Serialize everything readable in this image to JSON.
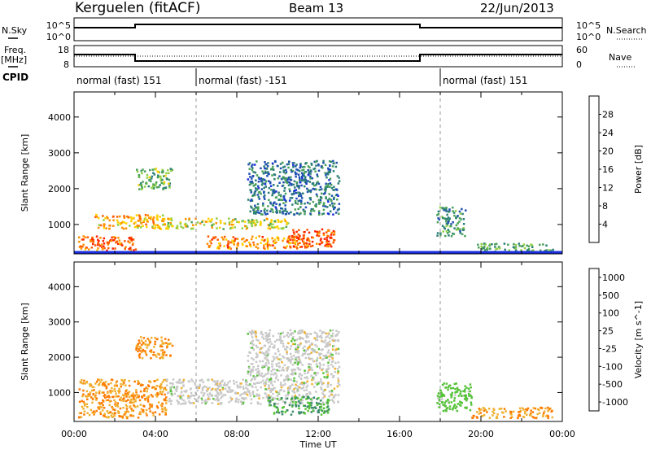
{
  "header": {
    "station": "Kerguelen (fitACF)",
    "beam": "Beam 13",
    "date": "22/Jun/2013"
  },
  "side_labels": {
    "nsky": "N.Sky",
    "nsearch": "N.Search",
    "freq_line1": "Freq.",
    "freq_line2": "[MHz]",
    "nave": "Nave",
    "cpid": "CPID"
  },
  "noise_panel": {
    "left_ticks": [
      "10^5",
      "10^0"
    ],
    "right_ticks": [
      "10^5",
      "10^0"
    ]
  },
  "freq_panel": {
    "left_ticks": [
      "18",
      "8"
    ],
    "right_ticks": [
      "60",
      "0"
    ]
  },
  "cpid_segments": [
    {
      "label": "normal (fast) 151",
      "start_hour": 0
    },
    {
      "label": "normal (fast) -151",
      "start_hour": 6
    },
    {
      "label": "normal (fast) 151",
      "start_hour": 18
    }
  ],
  "time_axis": {
    "title": "Time UT",
    "ticks": [
      "00:00",
      "04:00",
      "08:00",
      "12:00",
      "16:00",
      "20:00",
      "00:00"
    ],
    "range_hours": [
      0,
      24
    ]
  },
  "range_axis": {
    "title": "Slant Range [km]",
    "ticks": [
      "1000",
      "2000",
      "3000",
      "4000"
    ],
    "range_km": [
      180,
      4700
    ]
  },
  "chart_data": [
    {
      "type": "heatmap",
      "title": "",
      "parameter": "Power",
      "colorbar_label": "Power [dB]",
      "colorbar_ticks": [
        "4",
        "8",
        "12",
        "16",
        "20",
        "24",
        "28"
      ],
      "colorbar_range": [
        0,
        32
      ],
      "colorbar_colors": [
        "#1a2de0",
        "#1f4fb0",
        "#2b7f76",
        "#4aa05a",
        "#8fcf43",
        "#ffd000",
        "#ff9000",
        "#ff5a00",
        "#ff2000"
      ],
      "scatter_regions": [
        {
          "hours": [
            0.2,
            3.0
          ],
          "km": [
            300,
            700
          ],
          "value": 26
        },
        {
          "hours": [
            1.0,
            4.5
          ],
          "km": [
            900,
            1300
          ],
          "value": 22
        },
        {
          "hours": [
            4.5,
            10.5
          ],
          "km": [
            900,
            1200
          ],
          "value": 18
        },
        {
          "hours": [
            6.5,
            11.5
          ],
          "km": [
            350,
            700
          ],
          "value": 24
        },
        {
          "hours": [
            10.5,
            12.8
          ],
          "km": [
            400,
            900
          ],
          "value": 27
        },
        {
          "hours": [
            3.0,
            4.8
          ],
          "km": [
            2000,
            2600
          ],
          "value": 14
        },
        {
          "hours": [
            8.5,
            13.0
          ],
          "km": [
            1300,
            2800
          ],
          "value": 8
        },
        {
          "hours": [
            17.8,
            19.2
          ],
          "km": [
            700,
            1500
          ],
          "value": 10
        },
        {
          "hours": [
            19.8,
            23.5
          ],
          "km": [
            250,
            500
          ],
          "value": 12
        }
      ]
    },
    {
      "type": "heatmap",
      "title": "",
      "parameter": "Velocity",
      "colorbar_label": "Velocity [m s^-1]",
      "colorbar_ticks": [
        "1000",
        "500",
        "100",
        "25",
        "-25",
        "-100",
        "-500",
        "-1000"
      ],
      "colorbar_colors": [
        "#1e3cc8",
        "#2e6ab5",
        "#3b8a6a",
        "#55c238",
        "#c8c8c8",
        "#f0b030",
        "#ff7a00",
        "#ff2010"
      ],
      "scatter_regions": [
        {
          "hours": [
            0.2,
            4.5
          ],
          "km": [
            300,
            1400
          ],
          "value": -100
        },
        {
          "hours": [
            3.0,
            4.8
          ],
          "km": [
            2000,
            2600
          ],
          "value": -100
        },
        {
          "hours": [
            4.5,
            13.0
          ],
          "km": [
            700,
            1400
          ],
          "value": 0
        },
        {
          "hours": [
            9.5,
            12.5
          ],
          "km": [
            400,
            900
          ],
          "value": 100
        },
        {
          "hours": [
            8.5,
            13.0
          ],
          "km": [
            1400,
            2800
          ],
          "value": 0
        },
        {
          "hours": [
            17.8,
            19.5
          ],
          "km": [
            500,
            1300
          ],
          "value": 50
        },
        {
          "hours": [
            19.5,
            23.5
          ],
          "km": [
            300,
            600
          ],
          "value": -100
        }
      ]
    }
  ]
}
